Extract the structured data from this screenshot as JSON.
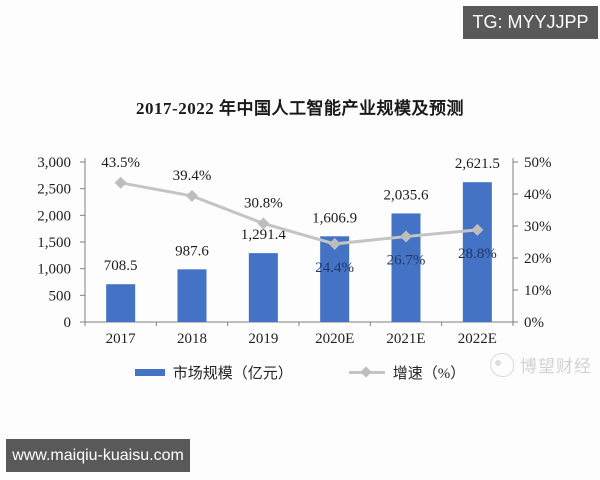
{
  "badges": {
    "telegram": "TG: MYYJJPP",
    "website": "www.maiqiu-kuaisu.com"
  },
  "watermark": {
    "text": "博望财经"
  },
  "chart_data": {
    "type": "bar",
    "combo": "bar+line",
    "title": "2017-2022 年中国人工智能产业规模及预测",
    "categories": [
      "2017",
      "2018",
      "2019",
      "2020E",
      "2021E",
      "2022E"
    ],
    "series": [
      {
        "name": "市场规模（亿元）",
        "type": "bar",
        "axis": "left",
        "color": "#4472C4",
        "values": [
          708.5,
          987.6,
          1291.4,
          1606.9,
          2035.6,
          2621.5
        ],
        "labels": [
          "708.5",
          "987.6",
          "1,291.4",
          "1,606.9",
          "2,035.6",
          "2,621.5"
        ],
        "label_color": "#1c1c1c"
      },
      {
        "name": "增速（%）",
        "type": "line",
        "axis": "right",
        "color": "#C4C4C4",
        "marker": "diamond",
        "marker_color": "#BDBDBD",
        "values": [
          43.5,
          39.4,
          30.8,
          24.4,
          26.7,
          28.8
        ],
        "labels": [
          "43.5%",
          "39.4%",
          "30.8%",
          "24.4%",
          "26.7%",
          "28.8%"
        ],
        "label_positions": [
          "above",
          "above",
          "above",
          "below",
          "below",
          "below"
        ],
        "label_color_above": "#1c1c1c",
        "label_color_below": "#1f3864"
      }
    ],
    "left_axis": {
      "min": 0,
      "max": 3000,
      "ticks": [
        {
          "value": 3000,
          "label": "3,000"
        },
        {
          "value": 2500,
          "label": "2,500"
        },
        {
          "value": 2000,
          "label": "2,000"
        },
        {
          "value": 1500,
          "label": "1,500"
        },
        {
          "value": 1000,
          "label": "1,000"
        },
        {
          "value": 500,
          "label": "500"
        },
        {
          "value": 0,
          "label": "0"
        }
      ]
    },
    "right_axis": {
      "min": 0,
      "max": 50,
      "ticks": [
        {
          "value": 50,
          "label": "50%"
        },
        {
          "value": 40,
          "label": "40%"
        },
        {
          "value": 30,
          "label": "30%"
        },
        {
          "value": 20,
          "label": "20%"
        },
        {
          "value": 10,
          "label": "10%"
        },
        {
          "value": 0,
          "label": "0%"
        }
      ]
    },
    "grid": false,
    "legend_position": "bottom"
  }
}
